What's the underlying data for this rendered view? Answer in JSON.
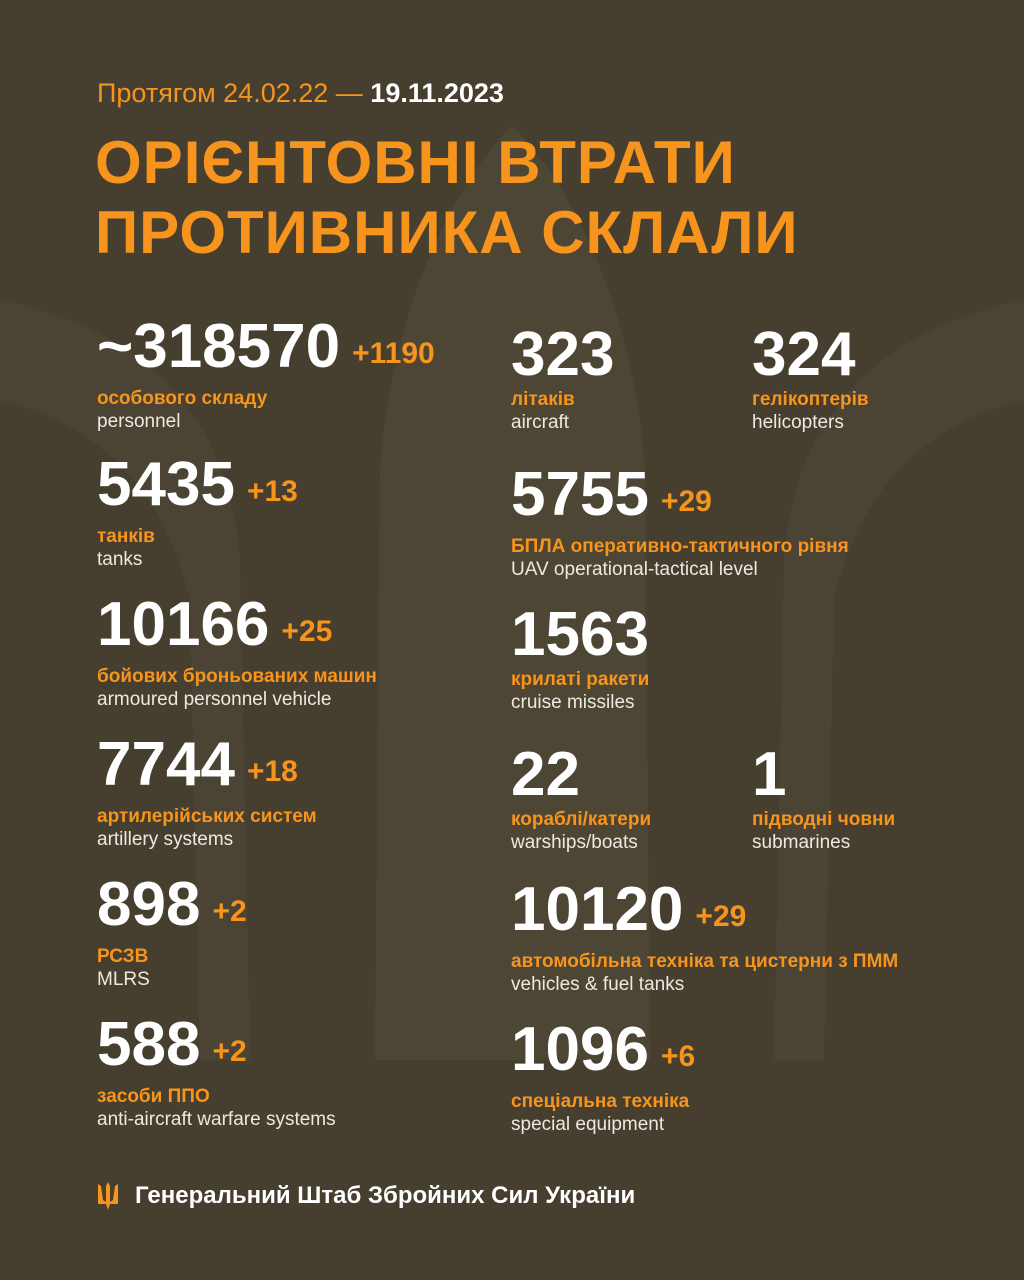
{
  "header": {
    "period_prefix": "Протягом 24.02.22 —",
    "period_end": "19.11.2023",
    "title_line1": "ОРІЄНТОВНІ ВТРАТИ",
    "title_line2": "ПРОТИВНИКА СКЛАЛИ"
  },
  "colors": {
    "background": "#463f2f",
    "accent": "#f7941d",
    "text": "#ffffff"
  },
  "stats": [
    {
      "value": "~318570",
      "delta": "+1190",
      "ua": "особового складу",
      "en": "personnel"
    },
    {
      "value": "5435",
      "delta": "+13",
      "ua": "танків",
      "en": "tanks"
    },
    {
      "value": "10166",
      "delta": "+25",
      "ua": "бойових броньованих машин",
      "en": "armoured personnel vehicle"
    },
    {
      "value": "7744",
      "delta": "+18",
      "ua": "артилерійських систем",
      "en": "artillery systems"
    },
    {
      "value": "898",
      "delta": "+2",
      "ua": "РСЗВ",
      "en": "MLRS"
    },
    {
      "value": "588",
      "delta": "+2",
      "ua": "засоби ППО",
      "en": "anti-aircraft warfare systems"
    },
    {
      "value": "323",
      "delta": "",
      "ua": "літаків",
      "en": "aircraft"
    },
    {
      "value": "324",
      "delta": "",
      "ua": "гелікоптерів",
      "en": "helicopters"
    },
    {
      "value": "5755",
      "delta": "+29",
      "ua": "БПЛА оперативно-тактичного рівня",
      "en": "UAV operational-tactical level"
    },
    {
      "value": "1563",
      "delta": "",
      "ua": "крилаті ракети",
      "en": "cruise missiles"
    },
    {
      "value": "22",
      "delta": "",
      "ua": "кораблі/катери",
      "en": "warships/boats"
    },
    {
      "value": "1",
      "delta": "",
      "ua": "підводні човни",
      "en": "submarines"
    },
    {
      "value": "10120",
      "delta": "+29",
      "ua": "автомобільна техніка та цистерни з ПММ",
      "en": "vehicles & fuel tanks"
    },
    {
      "value": "1096",
      "delta": "+6",
      "ua": "спеціальна техніка",
      "en": "special equipment"
    }
  ],
  "footer": {
    "icon": "trident-icon",
    "text": "Генеральний Штаб Збройних Сил України"
  }
}
